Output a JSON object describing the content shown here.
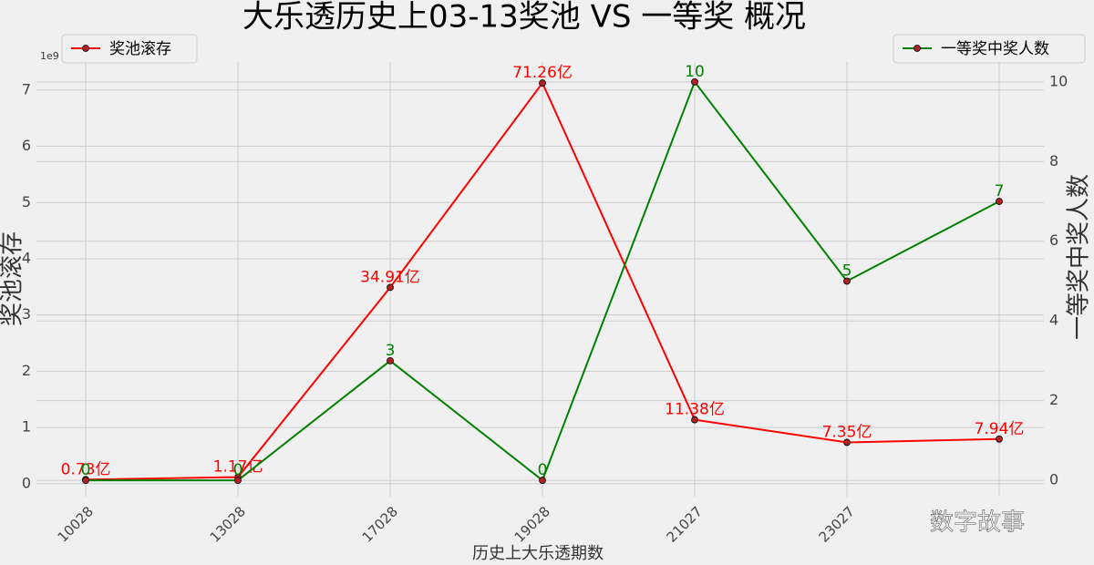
{
  "chart_data": {
    "type": "line",
    "title": "大乐透历史上03-13奖池 VS 一等奖 概况",
    "x_label": "历史上大乐透期数",
    "y_label": "奖池滚存",
    "y2_label": "一等奖中奖人数",
    "y_offset_label": "1e9",
    "watermark": "数字故事",
    "categories": [
      "10028",
      "13028",
      "17028",
      "19028",
      "21027",
      "23027",
      null
    ],
    "series": [
      {
        "name": "奖池滚存",
        "color": "#ff0000",
        "axis": "y",
        "legend": "upper left",
        "values": [
          0.073,
          0.117,
          3.491,
          7.126,
          1.138,
          0.735,
          0.794
        ],
        "value_labels": [
          "0.73亿",
          "1.17亿",
          "34.91亿",
          "71.26亿",
          "11.38亿",
          "7.35亿",
          "7.94亿"
        ]
      },
      {
        "name": "一等奖中奖人数",
        "color": "#008000",
        "axis": "y2",
        "legend": "upper right",
        "values": [
          0,
          0,
          3,
          0,
          10,
          5,
          7
        ]
      }
    ],
    "ylim": [
      -0.23,
      7.5
    ],
    "yticks": [
      0,
      1,
      2,
      3,
      4,
      5,
      6,
      7
    ],
    "y2lim": [
      -0.41,
      10.5
    ],
    "y2ticks": [
      0,
      2,
      4,
      6,
      8,
      10
    ],
    "grid": true
  }
}
